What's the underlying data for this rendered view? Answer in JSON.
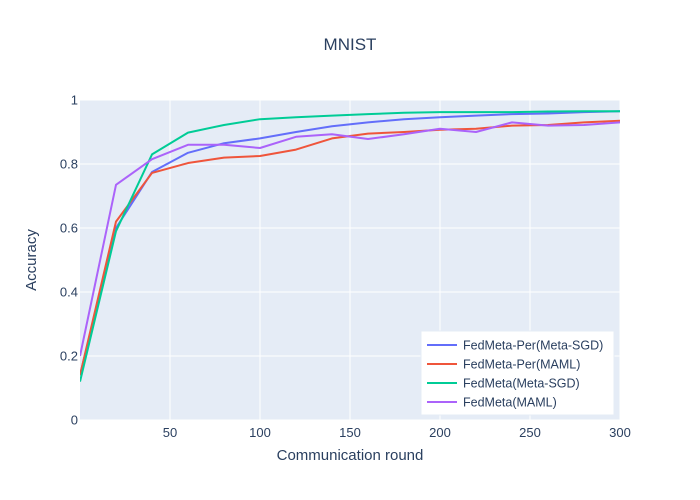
{
  "chart_data": {
    "type": "line",
    "title": "MNIST",
    "xlabel": "Communication round",
    "ylabel": "Accuracy",
    "xlim": [
      0,
      300
    ],
    "ylim": [
      0,
      1
    ],
    "xticks": [
      50,
      100,
      150,
      200,
      250,
      300
    ],
    "xtick_labels": [
      "50",
      "100",
      "150",
      "200",
      "250",
      "300"
    ],
    "yticks": [
      0,
      0.2,
      0.4,
      0.6,
      0.8,
      1
    ],
    "ytick_labels": [
      "0",
      "0.2",
      "0.4",
      "0.6",
      "0.8",
      "1"
    ],
    "grid": true,
    "legend_position": "bottom-right",
    "series": [
      {
        "name": "FedMeta-Per(Meta-SGD)",
        "color": "#636efa",
        "x": [
          0,
          20,
          40,
          60,
          80,
          100,
          120,
          140,
          160,
          180,
          200,
          220,
          240,
          260,
          280,
          300
        ],
        "y": [
          0.14,
          0.6,
          0.775,
          0.835,
          0.865,
          0.88,
          0.9,
          0.918,
          0.93,
          0.94,
          0.946,
          0.951,
          0.956,
          0.958,
          0.962,
          0.965
        ]
      },
      {
        "name": "FedMeta-Per(MAML)",
        "color": "#ef553b",
        "x": [
          0,
          20,
          40,
          60,
          80,
          100,
          120,
          140,
          160,
          180,
          200,
          220,
          240,
          260,
          280,
          300
        ],
        "y": [
          0.14,
          0.62,
          0.772,
          0.803,
          0.82,
          0.825,
          0.845,
          0.88,
          0.895,
          0.9,
          0.907,
          0.91,
          0.92,
          0.922,
          0.93,
          0.935
        ]
      },
      {
        "name": "FedMeta(Meta-SGD)",
        "color": "#00cc96",
        "x": [
          0,
          20,
          40,
          60,
          80,
          100,
          120,
          140,
          160,
          180,
          200,
          220,
          240,
          260,
          280,
          300
        ],
        "y": [
          0.12,
          0.59,
          0.83,
          0.898,
          0.922,
          0.94,
          0.946,
          0.951,
          0.956,
          0.96,
          0.962,
          0.962,
          0.962,
          0.964,
          0.965,
          0.965
        ]
      },
      {
        "name": "FedMeta(MAML)",
        "color": "#ab63fa",
        "x": [
          0,
          20,
          40,
          60,
          80,
          100,
          120,
          140,
          160,
          180,
          200,
          220,
          240,
          260,
          280,
          300
        ],
        "y": [
          0.2,
          0.735,
          0.815,
          0.86,
          0.86,
          0.85,
          0.885,
          0.893,
          0.878,
          0.893,
          0.91,
          0.9,
          0.93,
          0.92,
          0.922,
          0.93
        ]
      }
    ]
  },
  "colors": {
    "plot_background": "#e5ecf6",
    "grid": "#ffffff",
    "text": "#2a3f5f"
  }
}
